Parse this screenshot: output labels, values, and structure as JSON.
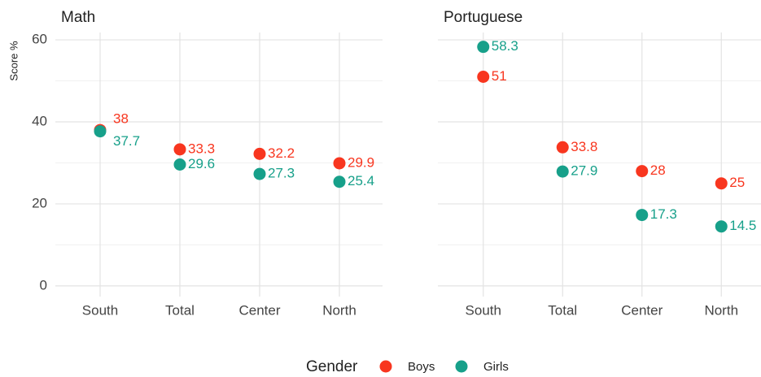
{
  "chart_data": [
    {
      "type": "dot",
      "title": "Math",
      "ylabel": "Score %",
      "categories": [
        "South",
        "Total",
        "Center",
        "North"
      ],
      "series": [
        {
          "name": "Boys",
          "color": "#f8361f",
          "values": [
            38,
            33.3,
            32.2,
            29.9
          ]
        },
        {
          "name": "Girls",
          "color": "#17a08a",
          "values": [
            37.7,
            29.6,
            27.3,
            25.4
          ]
        }
      ],
      "ylim": [
        -2.6,
        61.8
      ],
      "yticks": [
        0,
        20,
        40,
        60
      ],
      "minor_yticks": [
        10,
        30,
        50
      ],
      "grid": true,
      "show_yticks": true
    },
    {
      "type": "dot",
      "title": "Portuguese",
      "categories": [
        "South",
        "Total",
        "Center",
        "North"
      ],
      "series": [
        {
          "name": "Boys",
          "color": "#f8361f",
          "values": [
            51,
            33.8,
            28,
            25
          ]
        },
        {
          "name": "Girls",
          "color": "#17a08a",
          "values": [
            58.3,
            27.9,
            17.3,
            14.5
          ]
        }
      ],
      "ylim": [
        -2.6,
        61.8
      ],
      "yticks": [
        0,
        20,
        40,
        60
      ],
      "minor_yticks": [
        10,
        30,
        50
      ],
      "grid": true,
      "show_yticks": false
    }
  ],
  "legend": {
    "title": "Gender",
    "position": "bottom"
  }
}
